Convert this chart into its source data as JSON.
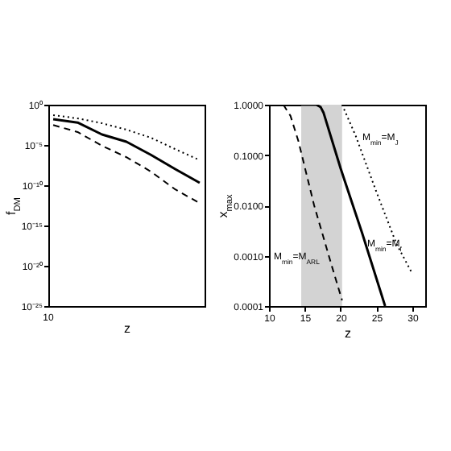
{
  "chart_data": [
    {
      "type": "line",
      "xlabel": "z",
      "ylabel": "f$_{DM}$",
      "log": "y",
      "categories": [
        null,
        null,
        null,
        null,
        null,
        null,
        null
      ],
      "ylim": [
        1e-25,
        1
      ],
      "yticks": [
        {
          "value": 1,
          "label": "10⁰"
        },
        {
          "value": 1e-05,
          "label": "10⁻⁵"
        },
        {
          "value": 1e-10,
          "label": "10⁻¹⁰"
        },
        {
          "value": 1e-15,
          "label": "10⁻¹⁵"
        },
        {
          "value": 1e-20,
          "label": "10⁻²⁰"
        },
        {
          "value": 1e-25,
          "label": "10⁻²⁵"
        }
      ],
      "grid": false,
      "tick_labels": "y",
      "series": [
        {
          "color": "#000000",
          "line_style": "solid",
          "values": [
            0.016,
            0.006,
            0.0002,
            2.5e-05,
            6e-07,
            1e-08,
            2e-10
          ]
        },
        {
          "color": "#000000",
          "line_style": "dotted",
          "values": [
            0.05,
            0.02,
            0.005,
            0.0008,
            8e-05,
            3e-06,
            1.3e-07
          ]
        },
        {
          "color": "#000000",
          "line_style": "dashed",
          "values": [
            0.003,
            0.0004,
            8e-06,
            3e-07,
            5e-09,
            3e-11,
            6e-13
          ]
        }
      ],
      "annotations": [
        "10"
      ]
    },
    {
      "type": "line",
      "xlabel": "z",
      "ylabel": "x$_{max}$",
      "log": "y",
      "xlim": [
        10,
        31.8
      ],
      "xticks": [
        10,
        15,
        20,
        25,
        30
      ],
      "ylim": [
        0.0001,
        1
      ],
      "yticks": [
        {
          "value": 1,
          "label": "1.0000"
        },
        {
          "value": 0.1,
          "label": "0.1000"
        },
        {
          "value": 0.01,
          "label": "0.0100"
        },
        {
          "value": 0.001,
          "label": "0.0010"
        },
        {
          "value": 0.0001,
          "label": "0.0001"
        }
      ],
      "grid": false,
      "bands": [
        {
          "axis": "x",
          "from": 14.5,
          "to": 20.2,
          "color": "#d3d3d3"
        }
      ],
      "series": [
        {
          "color": "#000000",
          "line_style": "solid",
          "x": [
            12,
            16.6,
            17.2,
            17.6,
            20,
            23,
            26.2
          ],
          "values": [
            1,
            1,
            0.9,
            0.7,
            0.054,
            0.0028,
            0.0001
          ]
        },
        {
          "color": "#000000",
          "line_style": "dashed",
          "x": [
            12,
            13,
            14.1,
            16.3,
            18.8,
            20.2
          ],
          "values": [
            1,
            0.6,
            0.19,
            0.01,
            0.0006,
            0.00013
          ]
        },
        {
          "color": "#000000",
          "line_style": "dotted",
          "x": [
            20.2,
            22.1,
            24.9,
            27.8,
            30
          ],
          "values": [
            1,
            0.24,
            0.02,
            0.0017,
            0.00044
          ]
        }
      ],
      "annotations": [
        "M$_{min}$=M$_{J}$",
        "M$_{min}$=M$_{f}$",
        "M$_{min}$=M$_{ARL}$"
      ]
    }
  ]
}
